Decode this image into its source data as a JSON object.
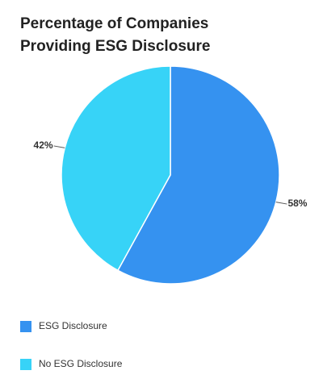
{
  "chart_data": {
    "type": "pie",
    "title": "Percentage of Companies Providing ESG Disclosure",
    "categories": [
      "ESG Disclosure",
      "No ESG Disclosure"
    ],
    "values": [
      58,
      42
    ],
    "value_labels": [
      "58%",
      "42%"
    ],
    "colors": [
      "#3592f0",
      "#37d3f7"
    ],
    "legend": "bottom"
  }
}
